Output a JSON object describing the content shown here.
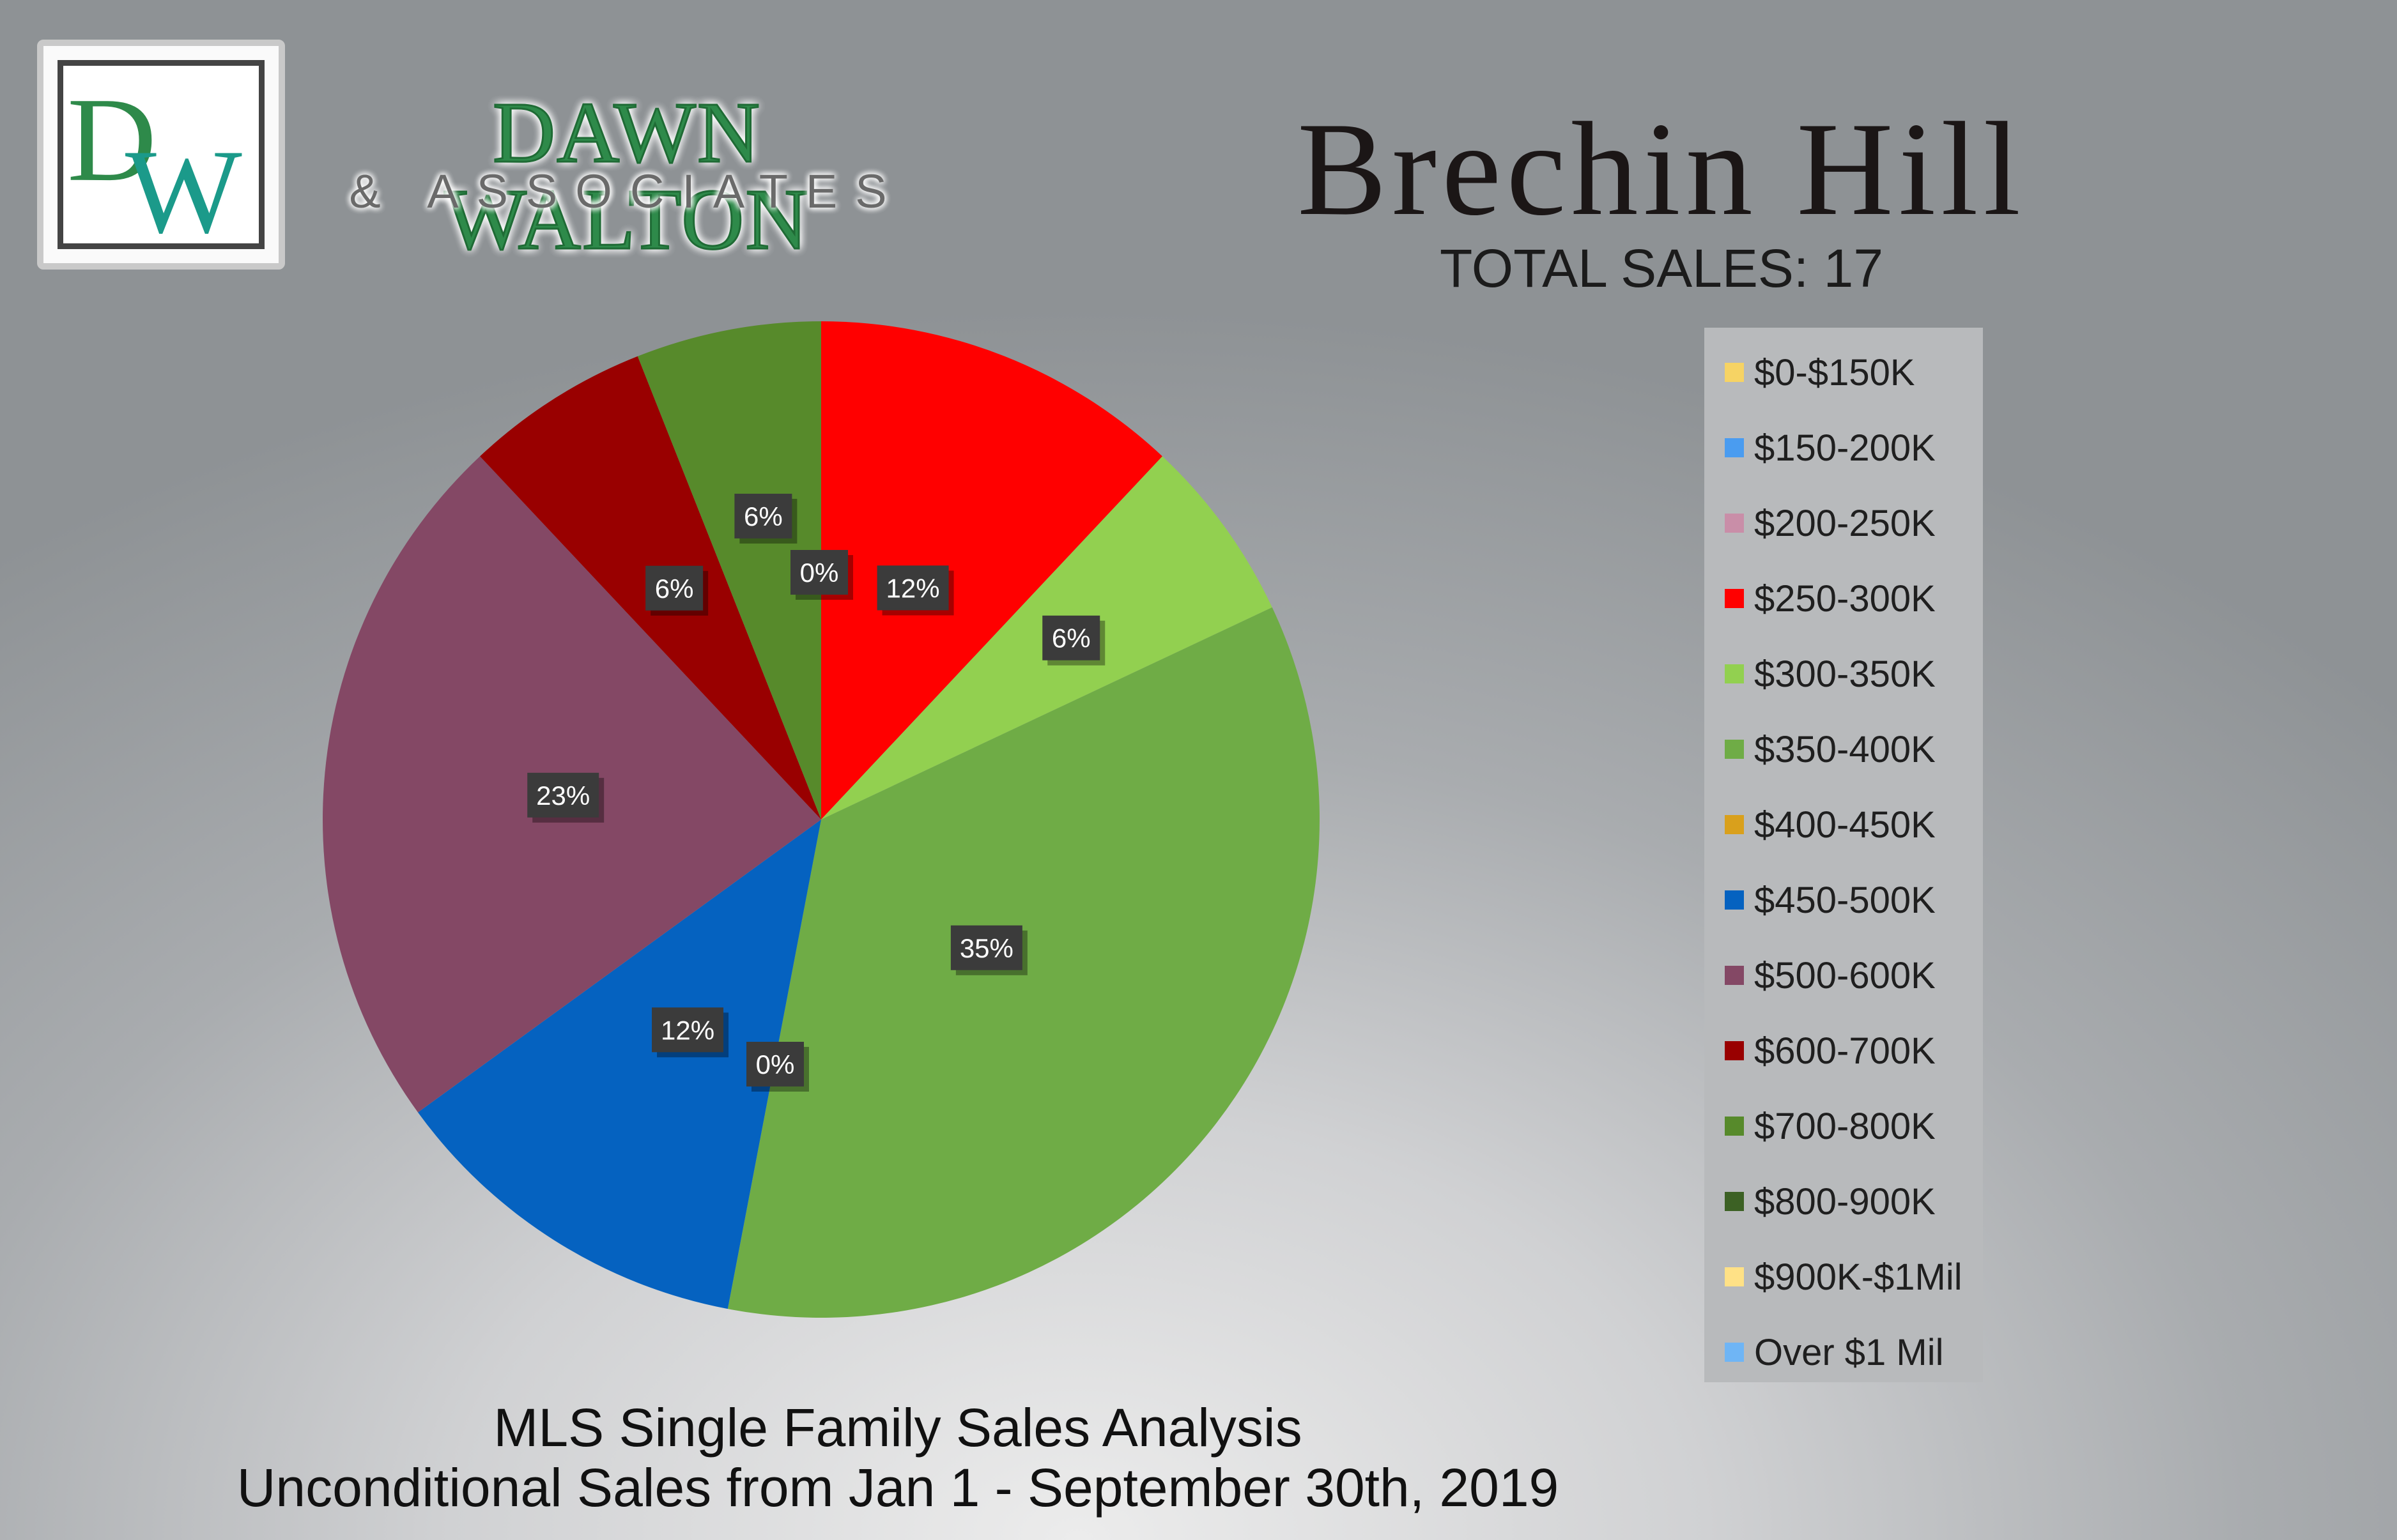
{
  "brand": {
    "logo_letters": "DW",
    "name": "DAWN WALTON",
    "sub": "& ASSOCIATES"
  },
  "chart_data": {
    "type": "pie",
    "title": "Brechin Hill",
    "subtitle": "TOTAL SALES: 17",
    "legend_position": "right",
    "slices": [
      {
        "label": "$0-$150K",
        "value": 0,
        "display": "",
        "color": "#f6d364"
      },
      {
        "label": "$150-200K",
        "value": 0,
        "display": "",
        "color": "#4a9cf0"
      },
      {
        "label": "$200-250K",
        "value": 0,
        "display": "",
        "color": "#c98ea8"
      },
      {
        "label": "$250-300K",
        "value": 12,
        "display": "12%",
        "color": "#ff0000"
      },
      {
        "label": "$300-350K",
        "value": 6,
        "display": "6%",
        "color": "#92d050"
      },
      {
        "label": "$350-400K",
        "value": 35,
        "display": "35%",
        "color": "#6fac46"
      },
      {
        "label": "$400-450K",
        "value": 0,
        "display": "0%",
        "color": "#d9a01c"
      },
      {
        "label": "$450-500K",
        "value": 12,
        "display": "12%",
        "color": "#0562c0"
      },
      {
        "label": "$500-600K",
        "value": 23,
        "display": "23%",
        "color": "#844865"
      },
      {
        "label": "$600-700K",
        "value": 6,
        "display": "6%",
        "color": "#990000"
      },
      {
        "label": "$700-800K",
        "value": 6,
        "display": "6%",
        "color": "#578a2b"
      },
      {
        "label": "$800-900K",
        "value": 0,
        "display": "0%",
        "color": "#3c6124"
      },
      {
        "label": "$900K-$1Mil",
        "value": 0,
        "display": "",
        "color": "#ffe186"
      },
      {
        "label": "Over $1 Mil",
        "value": 0,
        "display": "",
        "color": "#6fb5f5"
      }
    ]
  },
  "footer": {
    "line1": "MLS Single Family Sales Analysis",
    "line2": "Unconditional Sales from Jan 1 - September 30th, 2019"
  }
}
